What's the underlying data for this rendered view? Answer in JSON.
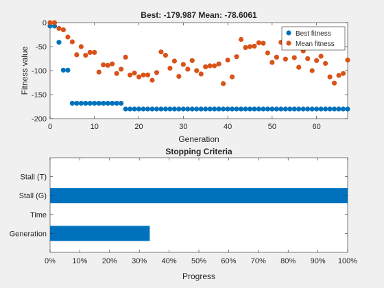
{
  "chart_data": [
    {
      "type": "scatter",
      "title": "Best: -179.987 Mean: -78.6061",
      "xlabel": "Generation",
      "ylabel": "Fitness value",
      "xlim": [
        0,
        67
      ],
      "ylim": [
        -200,
        0
      ],
      "xticks": [
        "0",
        "10",
        "20",
        "30",
        "40",
        "50",
        "60"
      ],
      "yticks": [
        "-200",
        "-150",
        "-100",
        "-50",
        "0"
      ],
      "xtick_values": [
        0,
        10,
        20,
        30,
        40,
        50,
        60
      ],
      "ytick_values": [
        -200,
        -150,
        -100,
        -50,
        0
      ],
      "grid": false,
      "legend_position": "top-right",
      "series": [
        {
          "name": "Best fitness",
          "color": "#0072bd",
          "x": [
            0,
            1,
            2,
            3,
            4,
            5,
            6,
            7,
            8,
            9,
            10,
            11,
            12,
            13,
            14,
            15,
            16,
            17,
            18,
            19,
            20,
            21,
            22,
            23,
            24,
            25,
            26,
            27,
            28,
            29,
            30,
            31,
            32,
            33,
            34,
            35,
            36,
            37,
            38,
            39,
            40,
            41,
            42,
            43,
            44,
            45,
            46,
            47,
            48,
            49,
            50,
            51,
            52,
            53,
            54,
            55,
            56,
            57,
            58,
            59,
            60,
            61,
            62,
            63,
            64,
            65,
            66,
            67
          ],
          "y": [
            -7,
            -7,
            -41,
            -99,
            -99,
            -168,
            -168,
            -168,
            -168,
            -168,
            -168,
            -168,
            -168,
            -168,
            -168,
            -168,
            -168,
            -180,
            -180,
            -180,
            -180,
            -180,
            -180,
            -180,
            -180,
            -180,
            -180,
            -180,
            -180,
            -180,
            -180,
            -180,
            -180,
            -180,
            -180,
            -180,
            -180,
            -180,
            -180,
            -180,
            -180,
            -180,
            -180,
            -180,
            -180,
            -180,
            -180,
            -180,
            -180,
            -180,
            -180,
            -180,
            -180,
            -180,
            -180,
            -180,
            -180,
            -180,
            -180,
            -180,
            -180,
            -180,
            -180,
            -180,
            -180,
            -180,
            -180,
            -180
          ]
        },
        {
          "name": "Mean fitness",
          "color": "#d95319",
          "x": [
            0,
            1,
            2,
            3,
            4,
            5,
            6,
            7,
            8,
            9,
            10,
            11,
            12,
            13,
            14,
            15,
            16,
            17,
            18,
            19,
            20,
            21,
            22,
            23,
            24,
            25,
            26,
            27,
            28,
            29,
            30,
            31,
            32,
            33,
            34,
            35,
            36,
            37,
            38,
            39,
            40,
            41,
            42,
            43,
            44,
            45,
            46,
            47,
            48,
            49,
            50,
            51,
            52,
            53,
            54,
            55,
            56,
            57,
            58,
            59,
            60,
            61,
            62,
            63,
            64,
            65,
            66,
            67
          ],
          "y": [
            0,
            0,
            -12,
            -15,
            -30,
            -40,
            -67,
            -50,
            -68,
            -62,
            -62,
            -103,
            -88,
            -89,
            -86,
            -106,
            -97,
            -72,
            -109,
            -105,
            -113,
            -109,
            -109,
            -120,
            -104,
            -61,
            -68,
            -95,
            -80,
            -112,
            -87,
            -97,
            -79,
            -100,
            -107,
            -92,
            -90,
            -90,
            -86,
            -127,
            -78,
            -113,
            -71,
            -35,
            -52,
            -50,
            -49,
            -42,
            -43,
            -63,
            -83,
            -72,
            -41,
            -76,
            -40,
            -73,
            -93,
            -59,
            -75,
            -100,
            -79,
            -70,
            -85,
            -113,
            -126,
            -110,
            -106,
            -78
          ]
        }
      ]
    },
    {
      "type": "bar",
      "orientation": "horizontal",
      "title": "Stopping Criteria",
      "xlabel": "Progress",
      "ylabel": "",
      "categories": [
        "Generation",
        "Time",
        "Stall (G)",
        "Stall (T)"
      ],
      "values": [
        33.5,
        0,
        100,
        0
      ],
      "color": "#0072bd",
      "xlim": [
        0,
        100
      ],
      "xticks": [
        "0%",
        "10%",
        "20%",
        "30%",
        "40%",
        "50%",
        "60%",
        "70%",
        "80%",
        "90%",
        "100%"
      ],
      "xtick_values": [
        0,
        10,
        20,
        30,
        40,
        50,
        60,
        70,
        80,
        90,
        100
      ],
      "grid": false
    }
  ]
}
